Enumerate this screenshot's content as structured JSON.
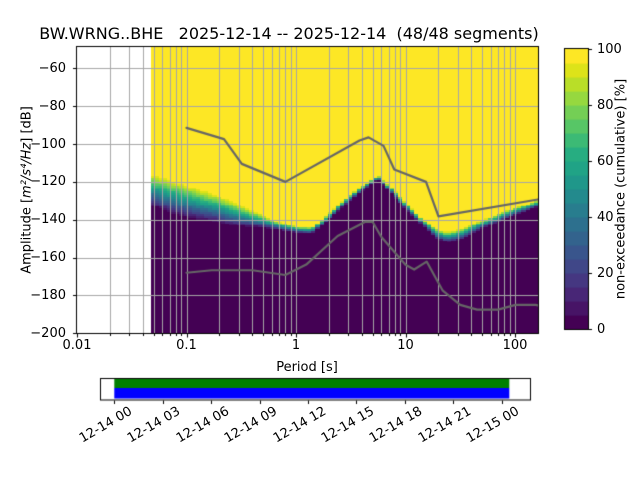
{
  "figure": {
    "background": "#ffffff"
  },
  "chart_data": {
    "type": "heatmap",
    "title": "BW.WRNG..BHE   2025-12-14 -- 2025-12-14  (48/48 segments)",
    "xlabel": "Period [s]",
    "ylabel": {
      "prefix": "Amplitude [",
      "math": "m²/s⁴/Hz",
      "suffix": "] [dB]"
    },
    "colorbar_label": "non-exceedance (cumulative) [%]",
    "x_scale": "log",
    "xlim": [
      0.01,
      162
    ],
    "ylim": [
      -200,
      -48.5
    ],
    "grid": "both",
    "x_ticks": {
      "values": [
        0.01,
        0.1,
        1,
        10,
        100
      ],
      "labels": [
        "0.01",
        "0.1",
        "1",
        "10",
        "100"
      ]
    },
    "y_ticks": {
      "values": [
        -60,
        -80,
        -100,
        -120,
        -140,
        -160,
        -180,
        -200
      ],
      "labels": [
        "−60",
        "−80",
        "−100",
        "−120",
        "−140",
        "−160",
        "−180",
        "−200"
      ]
    },
    "colorbar": {
      "ticks": [
        0,
        20,
        40,
        60,
        80,
        100
      ],
      "labels": [
        "0",
        "20",
        "40",
        "60",
        "80",
        "100"
      ],
      "levels": 20,
      "colormap": "viridis",
      "position": "right"
    },
    "colors": {
      "cmap_min": "#440154",
      "cmap_max": "#fde725",
      "grid": "#a6a6a6",
      "noise_model": "#666666",
      "spine": "#000000",
      "no_data": "#ffffff",
      "viridis_stops": [
        "#440154",
        "#471365",
        "#482475",
        "#463480",
        "#414487",
        "#3b528b",
        "#355f8d",
        "#2f6c8e",
        "#2a788e",
        "#25848e",
        "#21918c",
        "#1e9c89",
        "#22a884",
        "#2ab07f",
        "#44bf70",
        "#5ec962",
        "#7ad151",
        "#9bd93c",
        "#bddf26",
        "#dfe318",
        "#fde725"
      ]
    },
    "data_period_min": 0.047,
    "data_period_max": 162,
    "period_bin_octaves": 0.125,
    "db_bin": 1,
    "psd_distribution": {
      "comment": "per period: dB of 100% (top) and 0% (bottom) non-exceedance boundary",
      "periods": [
        0.047,
        0.065,
        0.09,
        0.13,
        0.18,
        0.25,
        0.35,
        0.5,
        0.7,
        1.0,
        1.4,
        2.0,
        2.8,
        4.0,
        5.6,
        7.5,
        9.5,
        14.0,
        19.0,
        24.0,
        33.0,
        48.0,
        75.0,
        115.0,
        162.0
      ],
      "db_top": [
        -115.5,
        -117.5,
        -120.5,
        -123.5,
        -126.0,
        -129.5,
        -133.5,
        -137.5,
        -141.0,
        -143.5,
        -144.0,
        -136.5,
        -129.0,
        -122.0,
        -116.5,
        -123.0,
        -129.5,
        -139.0,
        -144.5,
        -146.5,
        -144.5,
        -140.5,
        -136.0,
        -132.5,
        -129.5
      ],
      "db_bottom": [
        -133.0,
        -136.5,
        -139.0,
        -140.5,
        -141.5,
        -143.5,
        -144.0,
        -144.5,
        -145.5,
        -147.0,
        -147.5,
        -140.0,
        -132.5,
        -125.0,
        -118.5,
        -126.5,
        -133.5,
        -142.5,
        -150.0,
        -152.0,
        -150.5,
        -145.5,
        -140.5,
        -136.5,
        -133.5
      ]
    },
    "noise_models": {
      "nhnm": [
        [
          0.1,
          -91.5
        ],
        [
          0.22,
          -97.4
        ],
        [
          0.32,
          -110.5
        ],
        [
          0.8,
          -120.0
        ],
        [
          3.8,
          -98.1
        ],
        [
          4.6,
          -96.5
        ],
        [
          6.3,
          -101.0
        ],
        [
          7.9,
          -113.5
        ],
        [
          15.4,
          -120.0
        ],
        [
          20.0,
          -138.2
        ],
        [
          162.0,
          -129.3
        ]
      ],
      "nlnm": [
        [
          0.1,
          -168.0
        ],
        [
          0.17,
          -166.7
        ],
        [
          0.4,
          -166.7
        ],
        [
          0.8,
          -169.2
        ],
        [
          1.24,
          -163.7
        ],
        [
          2.4,
          -148.6
        ],
        [
          4.3,
          -141.1
        ],
        [
          5.0,
          -141.1
        ],
        [
          6.0,
          -149.0
        ],
        [
          10.0,
          -163.8
        ],
        [
          12.0,
          -166.3
        ],
        [
          15.6,
          -162.1
        ],
        [
          21.9,
          -177.5
        ],
        [
          31.6,
          -185.0
        ],
        [
          45.0,
          -187.5
        ],
        [
          70.0,
          -187.5
        ],
        [
          101.0,
          -185.0
        ],
        [
          154.0,
          -185.0
        ],
        [
          162.0,
          -185.2
        ]
      ]
    }
  },
  "timeline": {
    "tick_labels": [
      "12-14 00",
      "12-14 03",
      "12-14 06",
      "12-14 09",
      "12-14 12",
      "12-14 15",
      "12-14 18",
      "12-14 21",
      "12-15 00"
    ],
    "coverage_top_color": "#008000",
    "coverage_bottom_color": "#0000ff",
    "frame_color": "#000000"
  }
}
